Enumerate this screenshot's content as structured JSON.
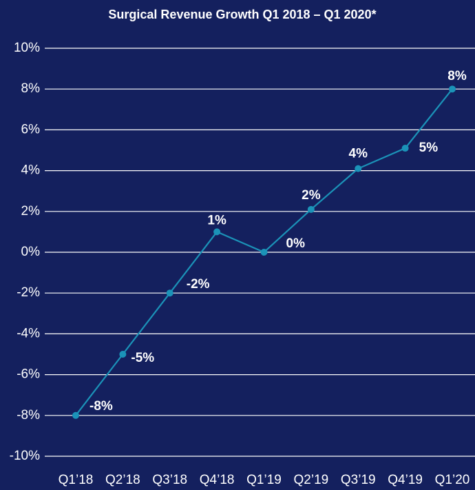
{
  "chart_data": {
    "type": "line",
    "title": "Surgical Revenue Growth Q1 2018 – Q1 2020*",
    "categories": [
      "Q1’18",
      "Q2’18",
      "Q3’18",
      "Q4’18",
      "Q1’19",
      "Q2’19",
      "Q3’19",
      "Q4’19",
      "Q1’20"
    ],
    "series": [
      {
        "color": "#1b93b8",
        "values": [
          -8,
          -5,
          -2,
          1,
          0,
          2.1,
          4.1,
          5.1,
          8
        ],
        "value_labels": [
          "-8%",
          "-5%",
          "-2%",
          "1%",
          "0%",
          "2%",
          "4%",
          "5%",
          "8%"
        ]
      }
    ],
    "ylim": [
      -10,
      10
    ],
    "yticks": [
      {
        "value": -10,
        "label": "-10%"
      },
      {
        "value": -8,
        "label": "-8%"
      },
      {
        "value": -6,
        "label": "-6%"
      },
      {
        "value": -4,
        "label": "-4%"
      },
      {
        "value": -2,
        "label": "-2%"
      },
      {
        "value": 0,
        "label": "0%"
      },
      {
        "value": 2,
        "label": "2%"
      },
      {
        "value": 4,
        "label": "4%"
      },
      {
        "value": 6,
        "label": "6%"
      },
      {
        "value": 8,
        "label": "8%"
      },
      {
        "value": 10,
        "label": "10%"
      }
    ],
    "grid": true
  }
}
